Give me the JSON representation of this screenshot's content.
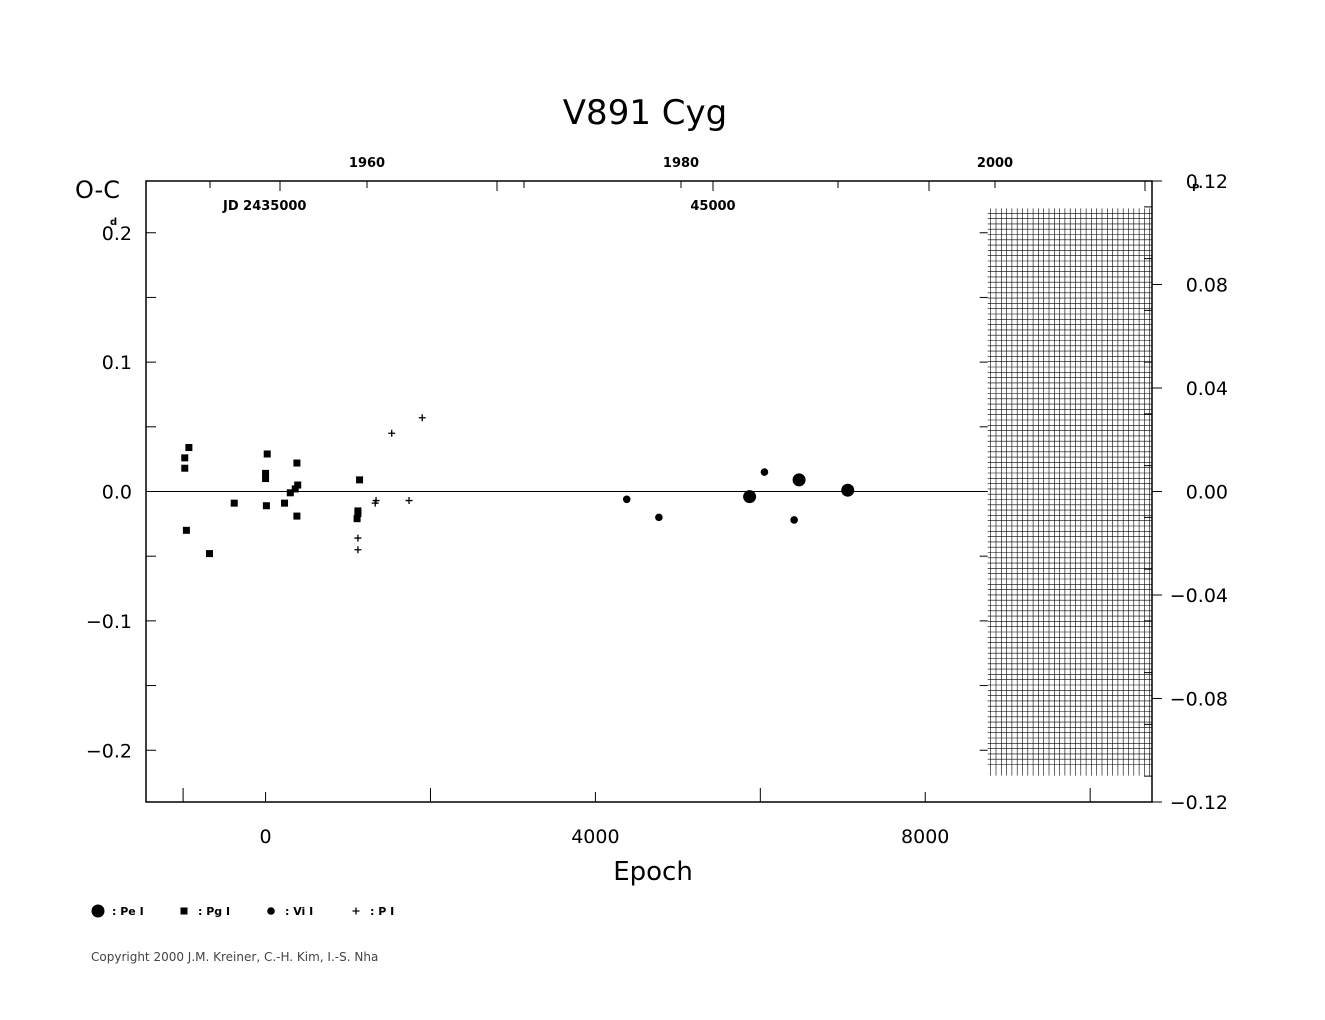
{
  "chart_data": {
    "type": "scatter",
    "title": "V891  Cyg",
    "ylabel": "O-C",
    "ylabel_unit": "d",
    "xlabel": "Epoch",
    "xlim": [
      -1450,
      10750
    ],
    "ylim": [
      -0.24,
      0.24
    ],
    "right_axis": {
      "unit": "P",
      "ylim": [
        -0.12,
        0.12
      ],
      "ticks": [
        -0.12,
        -0.08,
        -0.04,
        0.0,
        0.04,
        0.08,
        0.12
      ],
      "tick_labels": [
        "−0.12",
        "−0.08",
        "−0.04",
        "0.00",
        "0.04",
        "0.08",
        "0.12"
      ]
    },
    "x_ticks": [
      0,
      4000,
      8000
    ],
    "x_tick_labels": [
      "0",
      "4000",
      "8000"
    ],
    "y_ticks": [
      -0.2,
      -0.1,
      0.0,
      0.1,
      0.2
    ],
    "y_tick_labels": [
      "−0.2",
      "−0.1",
      "0.0",
      "0.1",
      "0.2"
    ],
    "top_axis": {
      "year_ticks": [
        1960,
        1980,
        2000
      ],
      "year_labels": [
        "1960",
        "1980",
        "2000"
      ],
      "jd_label": "JD 2435000",
      "jd2_label": "45000"
    },
    "series": [
      {
        "name": "Pe I",
        "marker": "large-circle",
        "points": [
          [
            5870,
            -0.004
          ],
          [
            6470,
            0.009
          ],
          [
            7060,
            0.001
          ]
        ]
      },
      {
        "name": "Pg I",
        "marker": "square",
        "points": [
          [
            -980,
            0.026
          ],
          [
            -980,
            0.018
          ],
          [
            -930,
            0.034
          ],
          [
            -960,
            -0.03
          ],
          [
            -680,
            -0.048
          ],
          [
            -380,
            -0.009
          ],
          [
            0,
            0.014
          ],
          [
            0,
            0.01
          ],
          [
            20,
            0.029
          ],
          [
            10,
            -0.011
          ],
          [
            230,
            -0.009
          ],
          [
            300,
            -0.001
          ],
          [
            360,
            0.002
          ],
          [
            380,
            0.022
          ],
          [
            390,
            0.005
          ],
          [
            380,
            -0.019
          ],
          [
            1140,
            0.009
          ],
          [
            1120,
            -0.015
          ],
          [
            1120,
            -0.017
          ],
          [
            1110,
            -0.021
          ]
        ]
      },
      {
        "name": "Vi I",
        "marker": "small-circle",
        "points": [
          [
            4380,
            -0.006
          ],
          [
            4770,
            -0.02
          ],
          [
            6050,
            0.015
          ],
          [
            6410,
            -0.022
          ]
        ]
      },
      {
        "name": "P I",
        "marker": "plus",
        "points": [
          [
            1530,
            0.045
          ],
          [
            1900,
            0.057
          ],
          [
            1120,
            -0.036
          ],
          [
            1120,
            -0.045
          ],
          [
            1340,
            -0.007
          ],
          [
            1330,
            -0.009
          ],
          [
            1740,
            -0.007
          ]
        ]
      }
    ],
    "legend_labels": [
      ": Pe I",
      ": Pg I",
      ": Vi I",
      ": P I"
    ],
    "hatched_region": {
      "x": [
        8830,
        10750
      ],
      "y": [
        -0.215,
        0.215
      ]
    }
  },
  "copyright": "Copyright 2000 J.M. Kreiner, C.-H. Kim, I.-S. Nha"
}
